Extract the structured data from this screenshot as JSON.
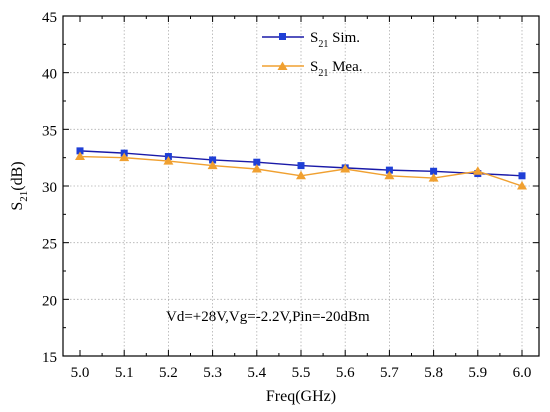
{
  "chart_data": {
    "type": "line",
    "title": "",
    "xlabel": "Freq(GHz)",
    "ylabel_main": "S",
    "ylabel_sub": "21",
    "ylabel_unit": "(dB)",
    "xlim": [
      5.0,
      6.0
    ],
    "ylim": [
      15,
      45
    ],
    "xticks": [
      5.0,
      5.1,
      5.2,
      5.3,
      5.4,
      5.5,
      5.6,
      5.7,
      5.8,
      5.9,
      6.0
    ],
    "xtick_labels": [
      "5.0",
      "5.1",
      "5.2",
      "5.3",
      "5.4",
      "5.5",
      "5.6",
      "5.7",
      "5.8",
      "5.9",
      "6.0"
    ],
    "yticks": [
      15,
      20,
      25,
      30,
      35,
      40,
      45
    ],
    "ytick_labels": [
      "15",
      "20",
      "25",
      "30",
      "35",
      "40",
      "45"
    ],
    "grid": true,
    "legend_position": "top-right",
    "x": [
      5.0,
      5.1,
      5.2,
      5.3,
      5.4,
      5.5,
      5.6,
      5.7,
      5.8,
      5.9,
      6.0
    ],
    "series": [
      {
        "name_main": "S",
        "name_sub": "21",
        "name_rest": " Sim.",
        "marker": "square",
        "color": "#1a1aa8",
        "marker_color": "#1f3fd6",
        "values": [
          33.1,
          32.9,
          32.6,
          32.3,
          32.1,
          31.8,
          31.6,
          31.4,
          31.3,
          31.1,
          30.9
        ]
      },
      {
        "name_main": "S",
        "name_sub": "21",
        "name_rest": " Mea.",
        "marker": "triangle",
        "color": "#f0a030",
        "marker_color": "#f0a030",
        "values": [
          32.6,
          32.5,
          32.2,
          31.8,
          31.5,
          30.9,
          31.5,
          30.9,
          30.7,
          31.3,
          30.0
        ]
      }
    ],
    "annotation": "Vd=+28V,Vg=-2.2V,Pin=-20dBm"
  }
}
